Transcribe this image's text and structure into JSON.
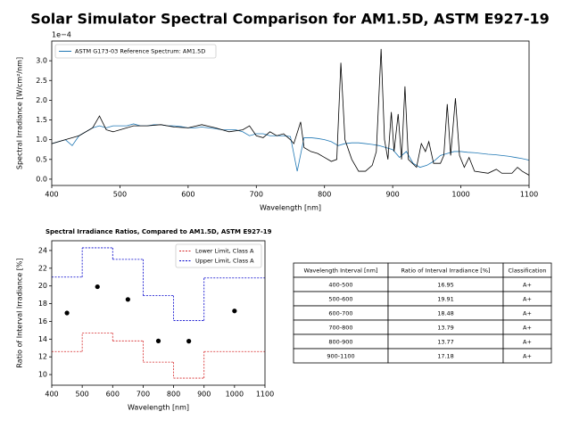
{
  "title": "Solar Simulator Spectral Comparison for AM1.5D, ASTM E927-19",
  "chart_data": [
    {
      "type": "line",
      "x_label": "Wavelength [nm]",
      "y_label": "Spectral Irradiance [W/cm²/nm]",
      "offset_label": "1e−4",
      "xlim": [
        400,
        1100
      ],
      "ylim": [
        -0.16,
        3.5
      ],
      "xticks": [
        400,
        500,
        600,
        700,
        800,
        900,
        1000,
        1100
      ],
      "yticks": [
        {
          "value": 0,
          "label": "0.0"
        },
        0.5,
        {
          "value": 1,
          "label": "1.0"
        },
        1.5,
        {
          "value": 2,
          "label": "2.0"
        },
        2.5,
        {
          "value": 3,
          "label": "3.0"
        }
      ],
      "legend": "upper left",
      "series": [
        {
          "name": "ASTM G173-03 Reference Spectrum: AM1.5D",
          "color": "#1f77b4",
          "x": [
            400,
            410,
            420,
            430,
            440,
            450,
            460,
            470,
            480,
            490,
            500,
            510,
            520,
            530,
            540,
            550,
            560,
            570,
            580,
            590,
            600,
            610,
            620,
            630,
            640,
            650,
            660,
            670,
            680,
            690,
            700,
            710,
            720,
            730,
            740,
            750,
            760,
            770,
            780,
            790,
            800,
            810,
            820,
            830,
            840,
            850,
            860,
            870,
            880,
            890,
            900,
            910,
            920,
            930,
            940,
            950,
            960,
            970,
            980,
            990,
            1000,
            1010,
            1020,
            1030,
            1040,
            1050,
            1060,
            1070,
            1080,
            1090,
            1100
          ],
          "values": [
            0.9,
            0.95,
            1.0,
            0.85,
            1.1,
            1.2,
            1.3,
            1.35,
            1.3,
            1.35,
            1.35,
            1.35,
            1.4,
            1.35,
            1.35,
            1.38,
            1.38,
            1.35,
            1.35,
            1.33,
            1.3,
            1.3,
            1.32,
            1.3,
            1.28,
            1.25,
            1.25,
            1.25,
            1.2,
            1.1,
            1.15,
            1.15,
            1.1,
            1.1,
            1.1,
            1.08,
            0.2,
            1.05,
            1.05,
            1.03,
            1.0,
            0.95,
            0.85,
            0.9,
            0.92,
            0.92,
            0.9,
            0.88,
            0.85,
            0.8,
            0.75,
            0.55,
            0.7,
            0.4,
            0.3,
            0.35,
            0.45,
            0.6,
            0.65,
            0.7,
            0.7,
            0.68,
            0.67,
            0.65,
            0.63,
            0.62,
            0.6,
            0.58,
            0.55,
            0.52,
            0.48
          ]
        },
        {
          "color": "#000000",
          "x": [
            400,
            420,
            440,
            460,
            470,
            480,
            490,
            500,
            520,
            540,
            560,
            580,
            600,
            620,
            640,
            660,
            680,
            690,
            700,
            710,
            720,
            730,
            740,
            750,
            755,
            765,
            770,
            780,
            790,
            800,
            810,
            818,
            824,
            830,
            840,
            850,
            860,
            870,
            876,
            883,
            888,
            893,
            898,
            902,
            908,
            913,
            918,
            923,
            935,
            942,
            948,
            953,
            960,
            970,
            975,
            980,
            985,
            992,
            998,
            1005,
            1012,
            1020,
            1040,
            1052,
            1060,
            1075,
            1083,
            1090,
            1100
          ],
          "values": [
            0.9,
            1.0,
            1.1,
            1.3,
            1.6,
            1.25,
            1.2,
            1.25,
            1.35,
            1.35,
            1.38,
            1.32,
            1.3,
            1.38,
            1.3,
            1.2,
            1.25,
            1.35,
            1.1,
            1.05,
            1.2,
            1.1,
            1.15,
            1.0,
            0.9,
            1.45,
            0.8,
            0.7,
            0.65,
            0.55,
            0.45,
            0.5,
            2.95,
            1.0,
            0.5,
            0.2,
            0.2,
            0.35,
            0.7,
            3.3,
            1.0,
            0.5,
            1.7,
            0.7,
            1.65,
            0.5,
            2.35,
            0.5,
            0.3,
            0.9,
            0.7,
            0.95,
            0.4,
            0.4,
            0.6,
            1.9,
            0.6,
            2.05,
            0.6,
            0.3,
            0.55,
            0.2,
            0.15,
            0.25,
            0.15,
            0.15,
            0.3,
            0.2,
            0.1
          ]
        }
      ]
    },
    {
      "type": "step",
      "title": "Spectral Irradiance Ratios, Compared to AM1.5D, ASTM E927-19",
      "x_label": "Wavelength [nm]",
      "y_label": "Ratio of Interval Irradiance [%]",
      "xlim": [
        400,
        1100
      ],
      "ylim": [
        8.8,
        25.1
      ],
      "xticks": [
        400,
        500,
        600,
        700,
        800,
        900,
        1000,
        1100
      ],
      "yticks": [
        10,
        12,
        14,
        16,
        18,
        20,
        22,
        24
      ],
      "legend": "upper right",
      "series": [
        {
          "name": "Lower Limit, Class A",
          "color": "#d62728",
          "style": "step",
          "edges": [
            400,
            500,
            600,
            700,
            800,
            900,
            1100
          ],
          "values": [
            12.6,
            14.7,
            13.8,
            11.4,
            9.6,
            12.6
          ]
        },
        {
          "name": "Upper Limit, Class A",
          "color": "#0000cc",
          "style": "step",
          "edges": [
            400,
            500,
            600,
            700,
            800,
            900,
            1100
          ],
          "values": [
            21,
            24.3,
            23,
            18.9,
            16.1,
            20.9
          ]
        },
        {
          "color": "#000000",
          "style": "scatter",
          "x": [
            450,
            550,
            650,
            750,
            850,
            1000
          ],
          "values": [
            16.95,
            19.91,
            18.48,
            13.79,
            13.77,
            17.18
          ]
        }
      ]
    }
  ],
  "table": {
    "header": [
      "Wavelength Interval [nm]",
      "Ratio of Interval Irradiance [%]",
      "Classification"
    ],
    "rows": [
      [
        "400-500",
        "16.95",
        "A+"
      ],
      [
        "500-600",
        "19.91",
        "A+"
      ],
      [
        "600-700",
        "18.48",
        "A+"
      ],
      [
        "700-800",
        "13.79",
        "A+"
      ],
      [
        "800-900",
        "13.77",
        "A+"
      ],
      [
        "900-1100",
        "17.18",
        "A+"
      ]
    ]
  }
}
